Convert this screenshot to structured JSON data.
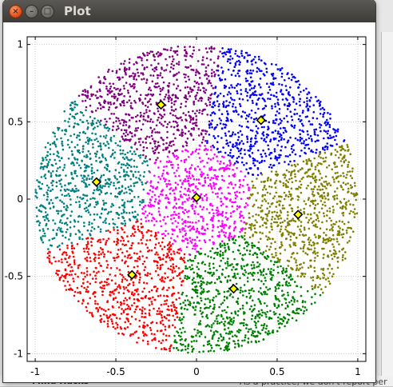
{
  "window": {
    "title": "Plot",
    "close_glyph": "×",
    "minimize_glyph": "–",
    "maximize_glyph": "□"
  },
  "background": {
    "bottom_left_text": "Mind Hacks",
    "bottom_right_text": "As a practice, we don't report per"
  },
  "chart_data": {
    "type": "scatter",
    "title": "",
    "xlabel": "",
    "ylabel": "",
    "xlim": [
      -1.05,
      1.05
    ],
    "ylim": [
      -1.05,
      1.05
    ],
    "x_ticks": [
      -1,
      -0.5,
      0,
      0.5,
      1
    ],
    "x_tick_labels": [
      "-1",
      "-0.5",
      "0",
      "0.5",
      "1"
    ],
    "y_ticks": [
      -1,
      -0.5,
      0,
      0.5,
      1
    ],
    "y_tick_labels": [
      "-1",
      "-0.5",
      "0",
      "0.5",
      "1"
    ],
    "grid": true,
    "disc_radius": 1.0,
    "inner_hexagon_radius": 0.37,
    "clusters": [
      {
        "color": "#ff00ff",
        "centroid": [
          0.0,
          0.01
        ]
      },
      {
        "color": "#0000ff",
        "centroid": [
          0.4,
          0.51
        ]
      },
      {
        "color": "#808000",
        "centroid": [
          0.63,
          -0.1
        ]
      },
      {
        "color": "#008000",
        "centroid": [
          0.23,
          -0.58
        ]
      },
      {
        "color": "#ff0000",
        "centroid": [
          -0.4,
          -0.49
        ]
      },
      {
        "color": "#008080",
        "centroid": [
          -0.62,
          0.11
        ]
      },
      {
        "color": "#800080",
        "centroid": [
          -0.22,
          0.61
        ]
      }
    ],
    "centroid_marker": {
      "fill": "#ffff00",
      "stroke": "#000000",
      "shape": "diamond"
    }
  }
}
